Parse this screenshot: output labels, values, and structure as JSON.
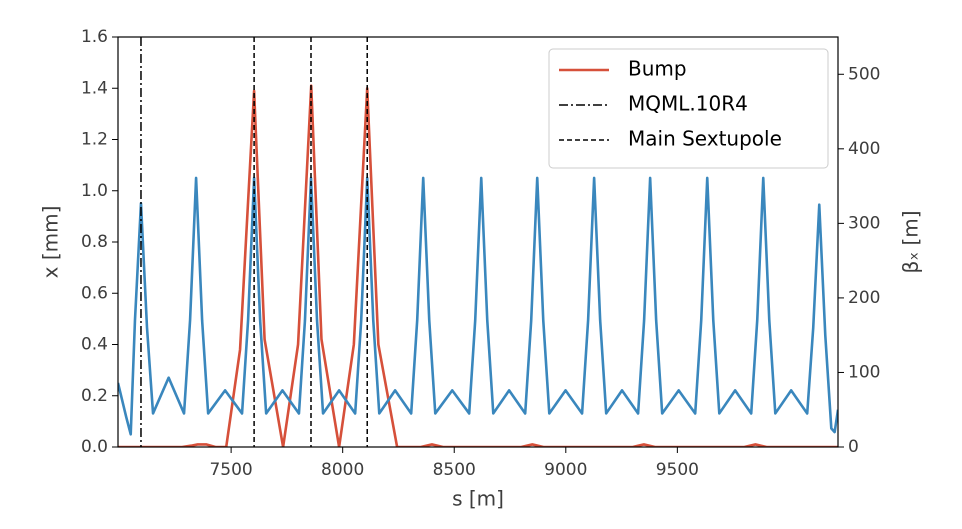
{
  "chart_data": {
    "type": "line",
    "xlabel": "s [m]",
    "ylabel": "x [mm]",
    "y2label": "βₓ [m]",
    "xlim": [
      6993,
      10220
    ],
    "xticks": [
      7500,
      8000,
      8500,
      9000,
      9500
    ],
    "ylim": [
      0,
      1.6
    ],
    "yticks": [
      {
        "value": 0,
        "label": "0.0"
      },
      0.2,
      0.4,
      0.6,
      0.8,
      {
        "value": 1,
        "label": "1.0"
      },
      1.2,
      1.4,
      1.6
    ],
    "y2lim": [
      0,
      550
    ],
    "y2ticks": [
      0,
      100,
      200,
      300,
      400,
      500
    ],
    "legend": "upper right",
    "series": [
      {
        "name": "Bump",
        "color": "#d6503a",
        "x": [
          6993,
          7280,
          7320,
          7350,
          7390,
          7430,
          7478,
          7540,
          7603,
          7650,
          7733,
          7800,
          7859,
          7905,
          7984,
          8050,
          8110,
          8160,
          8244,
          8350,
          8400,
          8450,
          8800,
          8850,
          8900,
          9300,
          9350,
          9400,
          9800,
          9850,
          9900,
          10220
        ],
        "values": [
          0,
          0,
          0.005,
          0.01,
          0.01,
          0,
          0,
          0.38,
          1.39,
          0.42,
          0,
          0.4,
          1.41,
          0.42,
          0,
          0.4,
          1.4,
          0.4,
          0,
          0,
          0.01,
          0,
          0,
          0.01,
          0,
          0,
          0.01,
          0,
          0,
          0.01,
          0,
          0
        ]
      },
      {
        "color": "#3a87bd",
        "axis": "y2",
        "x": [
          6993,
          7030,
          7050,
          7069,
          7096,
          7123,
          7150,
          7220,
          7289,
          7316,
          7343,
          7370,
          7397,
          7473,
          7549,
          7576,
          7603,
          7630,
          7657,
          7730,
          7804,
          7831,
          7858,
          7885,
          7912,
          7984,
          8056,
          8083,
          8110,
          8137,
          8164,
          8235,
          8307,
          8334,
          8361,
          8388,
          8415,
          8491,
          8567,
          8594,
          8621,
          8648,
          8675,
          8746,
          8818,
          8845,
          8872,
          8899,
          8926,
          8999,
          9073,
          9100,
          9127,
          9154,
          9181,
          9252,
          9324,
          9351,
          9378,
          9405,
          9432,
          9506,
          9580,
          9607,
          9634,
          9661,
          9688,
          9759,
          9831,
          9858,
          9885,
          9912,
          9939,
          10010,
          10082,
          10109,
          10136,
          10163,
          10190,
          10205,
          10220
        ],
        "values": [
          86,
          40,
          17,
          170,
          327,
          160,
          45,
          93,
          45,
          170,
          361,
          170,
          45,
          76,
          45,
          170,
          361,
          170,
          45,
          76,
          45,
          170,
          361,
          170,
          45,
          76,
          45,
          170,
          361,
          170,
          45,
          76,
          45,
          170,
          361,
          170,
          45,
          76,
          45,
          170,
          361,
          170,
          45,
          76,
          45,
          170,
          361,
          170,
          45,
          76,
          45,
          170,
          361,
          170,
          45,
          76,
          45,
          170,
          361,
          170,
          45,
          76,
          45,
          170,
          361,
          170,
          45,
          76,
          45,
          170,
          361,
          170,
          45,
          76,
          45,
          160,
          325,
          150,
          25,
          20,
          50
        ]
      }
    ],
    "vlines": [
      {
        "name": "MQML.10R4",
        "style": "dashdot",
        "color": "#000000",
        "x": [
          7096
        ]
      },
      {
        "name": "Main Sextupole",
        "style": "dashed",
        "color": "#000000",
        "x": [
          7603,
          7858,
          8110
        ]
      }
    ]
  }
}
